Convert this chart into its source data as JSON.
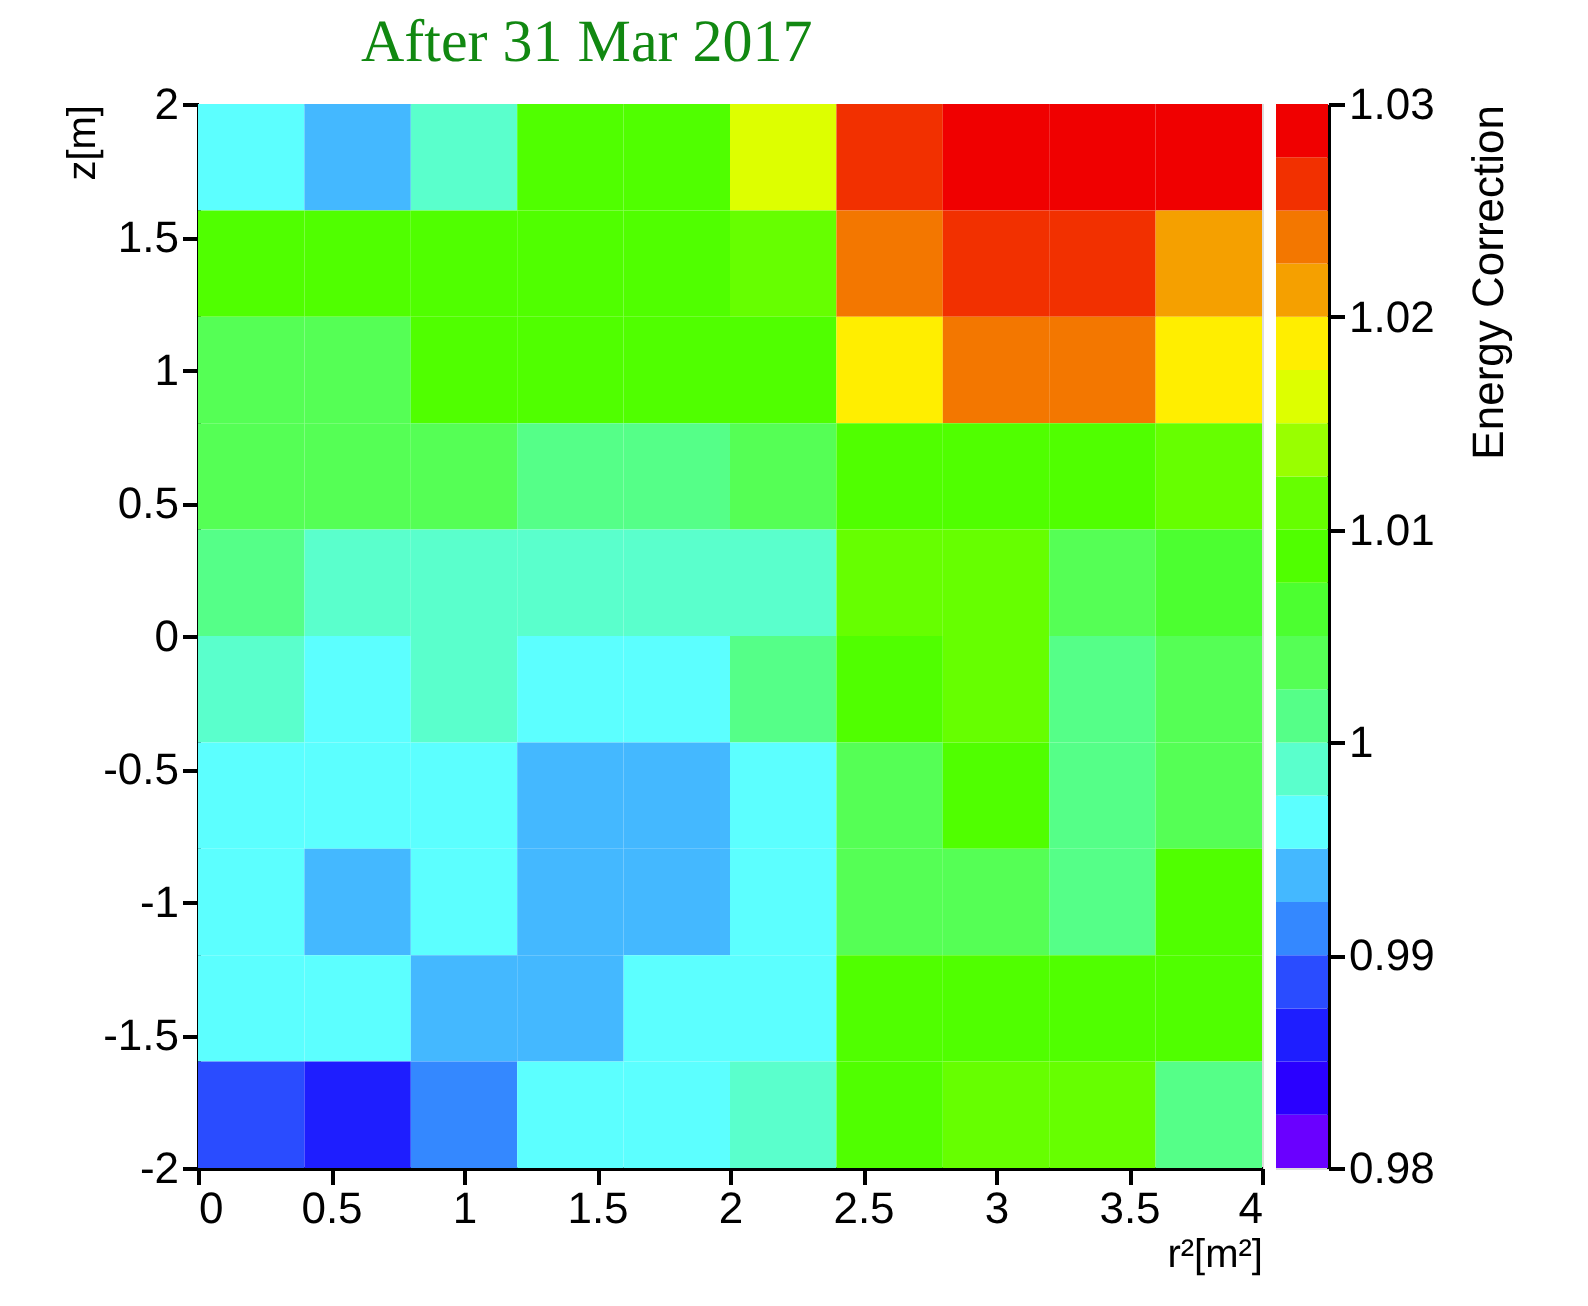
{
  "chart_data": {
    "type": "heatmap",
    "title": "After 31 Mar 2017",
    "xlabel": "r²[m²]",
    "ylabel": "z[m]",
    "clabel": "Energy Correction",
    "x": [
      0.2,
      0.6,
      1,
      1.4,
      1.8,
      2.2,
      2.6,
      3,
      3.4,
      3.8
    ],
    "y": [
      1.8,
      1.4,
      1,
      0.6,
      0.2,
      -0.2,
      -0.6,
      -1,
      -1.4,
      -1.8
    ],
    "xlim": [
      0,
      4
    ],
    "ylim": [
      -2,
      2
    ],
    "xticks": [
      0,
      0.5,
      1,
      1.5,
      2,
      2.5,
      3,
      3.5,
      4
    ],
    "yticks": [
      -2,
      -1.5,
      -1,
      -0.5,
      0,
      0.5,
      1,
      1.5,
      2
    ],
    "clim": [
      0.98,
      1.03
    ],
    "cticks": [
      0.98,
      0.99,
      1,
      1.01,
      1.02,
      1.03
    ],
    "colors": [
      "#6a00ff",
      "#2a00ff",
      "#1e1eff",
      "#2a4cff",
      "#3488ff",
      "#44b8ff",
      "#5cffff",
      "#5affcc",
      "#55ff88",
      "#55ff55",
      "#4cff30",
      "#50ff00",
      "#66ff00",
      "#99ff00",
      "#ddff00",
      "#ffee00",
      "#f5a000",
      "#f37700",
      "#f23000",
      "#f00000"
    ],
    "cells": [
      [
        0.99625,
        0.99375,
        0.99875,
        1.00875,
        1.00875,
        1.01625,
        1.02625,
        1.02875,
        1.02875,
        1.02875
      ],
      [
        1.00875,
        1.00875,
        1.00875,
        1.00875,
        1.00875,
        1.01125,
        1.02375,
        1.02625,
        1.02625,
        1.02125
      ],
      [
        1.00375,
        1.00375,
        1.00875,
        1.00875,
        1.00875,
        1.00875,
        1.01875,
        1.02375,
        1.02375,
        1.01875
      ],
      [
        1.00375,
        1.00375,
        1.00375,
        1.00125,
        1.00125,
        1.00375,
        1.00875,
        1.00875,
        1.00875,
        1.01125
      ],
      [
        1.00125,
        0.99875,
        0.99875,
        0.99875,
        0.99875,
        0.99875,
        1.01125,
        1.01125,
        1.00375,
        1.00625
      ],
      [
        0.99875,
        0.99625,
        0.99875,
        0.99625,
        0.99625,
        1.00125,
        1.00875,
        1.01125,
        1.00125,
        1.00375
      ],
      [
        0.99625,
        0.99625,
        0.99625,
        0.99375,
        0.99375,
        0.99625,
        1.00375,
        1.00875,
        1.00125,
        1.00375
      ],
      [
        0.99625,
        0.99375,
        0.99625,
        0.99375,
        0.99375,
        0.99625,
        1.00375,
        1.00375,
        1.00125,
        1.00875
      ],
      [
        0.99625,
        0.99625,
        0.99375,
        0.99375,
        0.99625,
        0.99625,
        1.00875,
        1.00875,
        1.00875,
        1.00875
      ],
      [
        0.98875,
        0.98625,
        0.99125,
        0.99625,
        0.99625,
        0.99875,
        1.00875,
        1.01125,
        1.01125,
        1.00125
      ]
    ],
    "grid": false
  }
}
